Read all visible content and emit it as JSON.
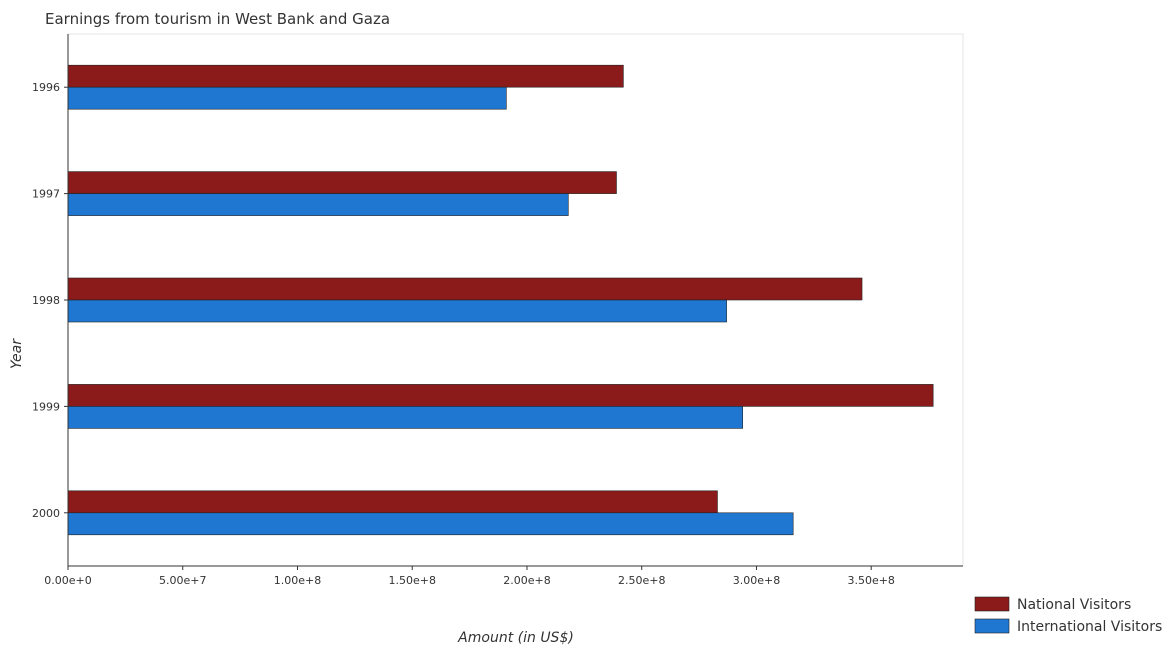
{
  "chart_data": {
    "type": "bar",
    "orientation": "horizontal",
    "title": "Earnings from tourism in West Bank and Gaza",
    "xlabel": "Amount (in US$)",
    "ylabel": "Year",
    "categories": [
      "1996",
      "1997",
      "1998",
      "1999",
      "2000"
    ],
    "series": [
      {
        "name": "National Visitors",
        "color": "#8b1a1a",
        "values": [
          242000000,
          239000000,
          346000000,
          377000000,
          283000000
        ]
      },
      {
        "name": "International Visitors",
        "color": "#1f77d2",
        "values": [
          191000000,
          218000000,
          287000000,
          294000000,
          316000000
        ]
      }
    ],
    "xlim": [
      0,
      390000000
    ],
    "xticks": [
      0,
      50000000,
      100000000,
      150000000,
      200000000,
      250000000,
      300000000,
      350000000
    ],
    "xtick_labels": [
      "0.00e+0",
      "5.00e+7",
      "1.00e+8",
      "1.50e+8",
      "2.00e+8",
      "2.50e+8",
      "3.00e+8",
      "3.50e+8"
    ],
    "grid": false,
    "legend_position": "bottom-right"
  }
}
